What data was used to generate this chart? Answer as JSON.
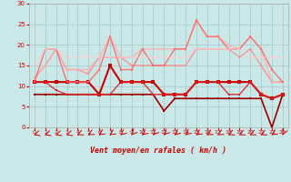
{
  "xlabel": "Vent moyen/en rafales ( km/h )",
  "xlim": [
    -0.5,
    23.5
  ],
  "ylim": [
    0,
    30
  ],
  "xticks": [
    0,
    1,
    2,
    3,
    4,
    5,
    6,
    7,
    8,
    9,
    10,
    11,
    12,
    13,
    14,
    15,
    16,
    17,
    18,
    19,
    20,
    21,
    22,
    23
  ],
  "yticks": [
    0,
    5,
    10,
    15,
    20,
    25,
    30
  ],
  "background_color": "#cbe8e8",
  "grid_color": "#aacccc",
  "lines": [
    {
      "y": [
        8,
        8,
        8,
        8,
        8,
        8,
        8,
        8,
        8,
        8,
        8,
        8,
        4,
        7,
        7,
        7,
        7,
        7,
        7,
        7,
        7,
        7,
        0,
        8
      ],
      "color": "#990000",
      "lw": 1.2,
      "marker": "s",
      "ms": 2.0,
      "alpha": 1.0
    },
    {
      "y": [
        11,
        11,
        11,
        11,
        11,
        11,
        8,
        15,
        11,
        11,
        11,
        11,
        8,
        8,
        8,
        11,
        11,
        11,
        11,
        11,
        11,
        8,
        7,
        8
      ],
      "color": "#cc0000",
      "lw": 1.5,
      "marker": "s",
      "ms": 2.5,
      "alpha": 1.0
    },
    {
      "y": [
        11,
        11,
        9,
        8,
        8,
        8,
        8,
        8,
        11,
        11,
        11,
        8,
        8,
        8,
        8,
        11,
        11,
        11,
        8,
        8,
        11,
        8,
        7,
        8
      ],
      "color": "#dd2222",
      "lw": 1.0,
      "marker": "s",
      "ms": 2.0,
      "alpha": 0.9
    },
    {
      "y": [
        12,
        15,
        19,
        14,
        14,
        13,
        17,
        17,
        17,
        15,
        15,
        15,
        15,
        15,
        15,
        19,
        19,
        19,
        19,
        17,
        19,
        15,
        11,
        11
      ],
      "color": "#ff8888",
      "lw": 1.0,
      "marker": "s",
      "ms": 2.0,
      "alpha": 0.85
    },
    {
      "y": [
        12,
        15,
        19,
        14,
        14,
        14,
        17,
        22,
        17,
        17,
        19,
        19,
        19,
        19,
        19,
        26,
        22,
        22,
        20,
        19,
        22,
        19,
        11,
        11
      ],
      "color": "#ffaaaa",
      "lw": 1.0,
      "marker": "s",
      "ms": 2.0,
      "alpha": 0.8
    },
    {
      "y": [
        11,
        19,
        19,
        11,
        11,
        11,
        14,
        22,
        14,
        14,
        19,
        15,
        15,
        19,
        19,
        26,
        22,
        22,
        19,
        19,
        22,
        19,
        14,
        11
      ],
      "color": "#ff6666",
      "lw": 1.0,
      "marker": "s",
      "ms": 2.0,
      "alpha": 0.9
    },
    {
      "y": [
        15,
        19,
        19,
        17,
        17,
        17,
        17,
        17,
        17,
        17,
        17,
        17,
        17,
        17,
        17,
        19,
        19,
        19,
        19,
        19,
        17,
        17,
        17,
        17
      ],
      "color": "#ffcccc",
      "lw": 0.8,
      "marker": "s",
      "ms": 1.5,
      "alpha": 0.75
    }
  ]
}
